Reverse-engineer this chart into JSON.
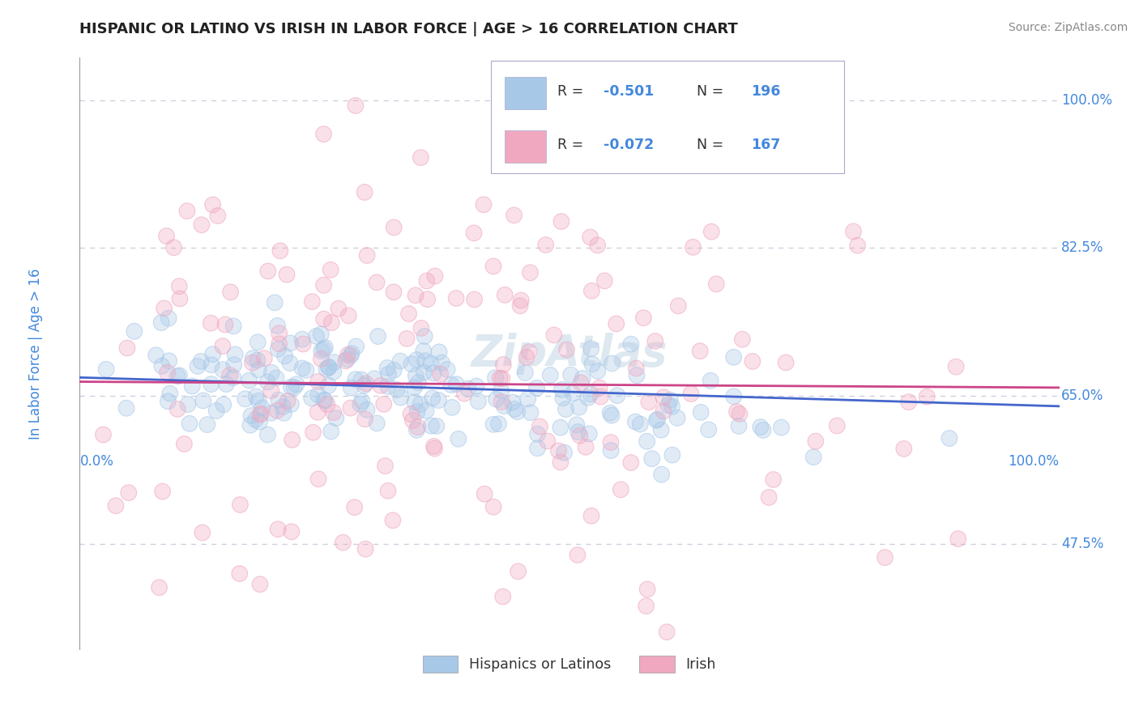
{
  "title": "HISPANIC OR LATINO VS IRISH IN LABOR FORCE | AGE > 16 CORRELATION CHART",
  "source": "Source: ZipAtlas.com",
  "ylabel": "In Labor Force | Age > 16",
  "xlim": [
    0.0,
    1.0
  ],
  "ylim": [
    0.35,
    1.05
  ],
  "yticks": [
    0.475,
    0.65,
    0.825,
    1.0
  ],
  "ytick_labels": [
    "47.5%",
    "65.0%",
    "82.5%",
    "100.0%"
  ],
  "xtick_labels": [
    "0.0%",
    "100.0%"
  ],
  "legend_r_blue": "-0.501",
  "legend_n_blue": "196",
  "legend_r_pink": "-0.072",
  "legend_n_pink": "167",
  "blue_color": "#a8c8e8",
  "pink_color": "#f0a8c0",
  "blue_line_color": "#4466cc",
  "pink_line_color": "#cc4488",
  "axis_color": "#4488dd",
  "title_color": "#222222",
  "source_color": "#888888",
  "grid_color": "#ccccdd",
  "watermark_text": "ZipAtlas",
  "watermark_color": "#dde8f0",
  "scatter_size": 200,
  "scatter_alpha": 0.35,
  "blue_line_y0": 0.672,
  "blue_line_y1": 0.638,
  "pink_line_y0": 0.667,
  "pink_line_y1": 0.66,
  "bottom_legend": [
    {
      "label": "Hispanics or Latinos",
      "color": "#a8c8e8"
    },
    {
      "label": "Irish",
      "color": "#f0a8c0"
    }
  ]
}
